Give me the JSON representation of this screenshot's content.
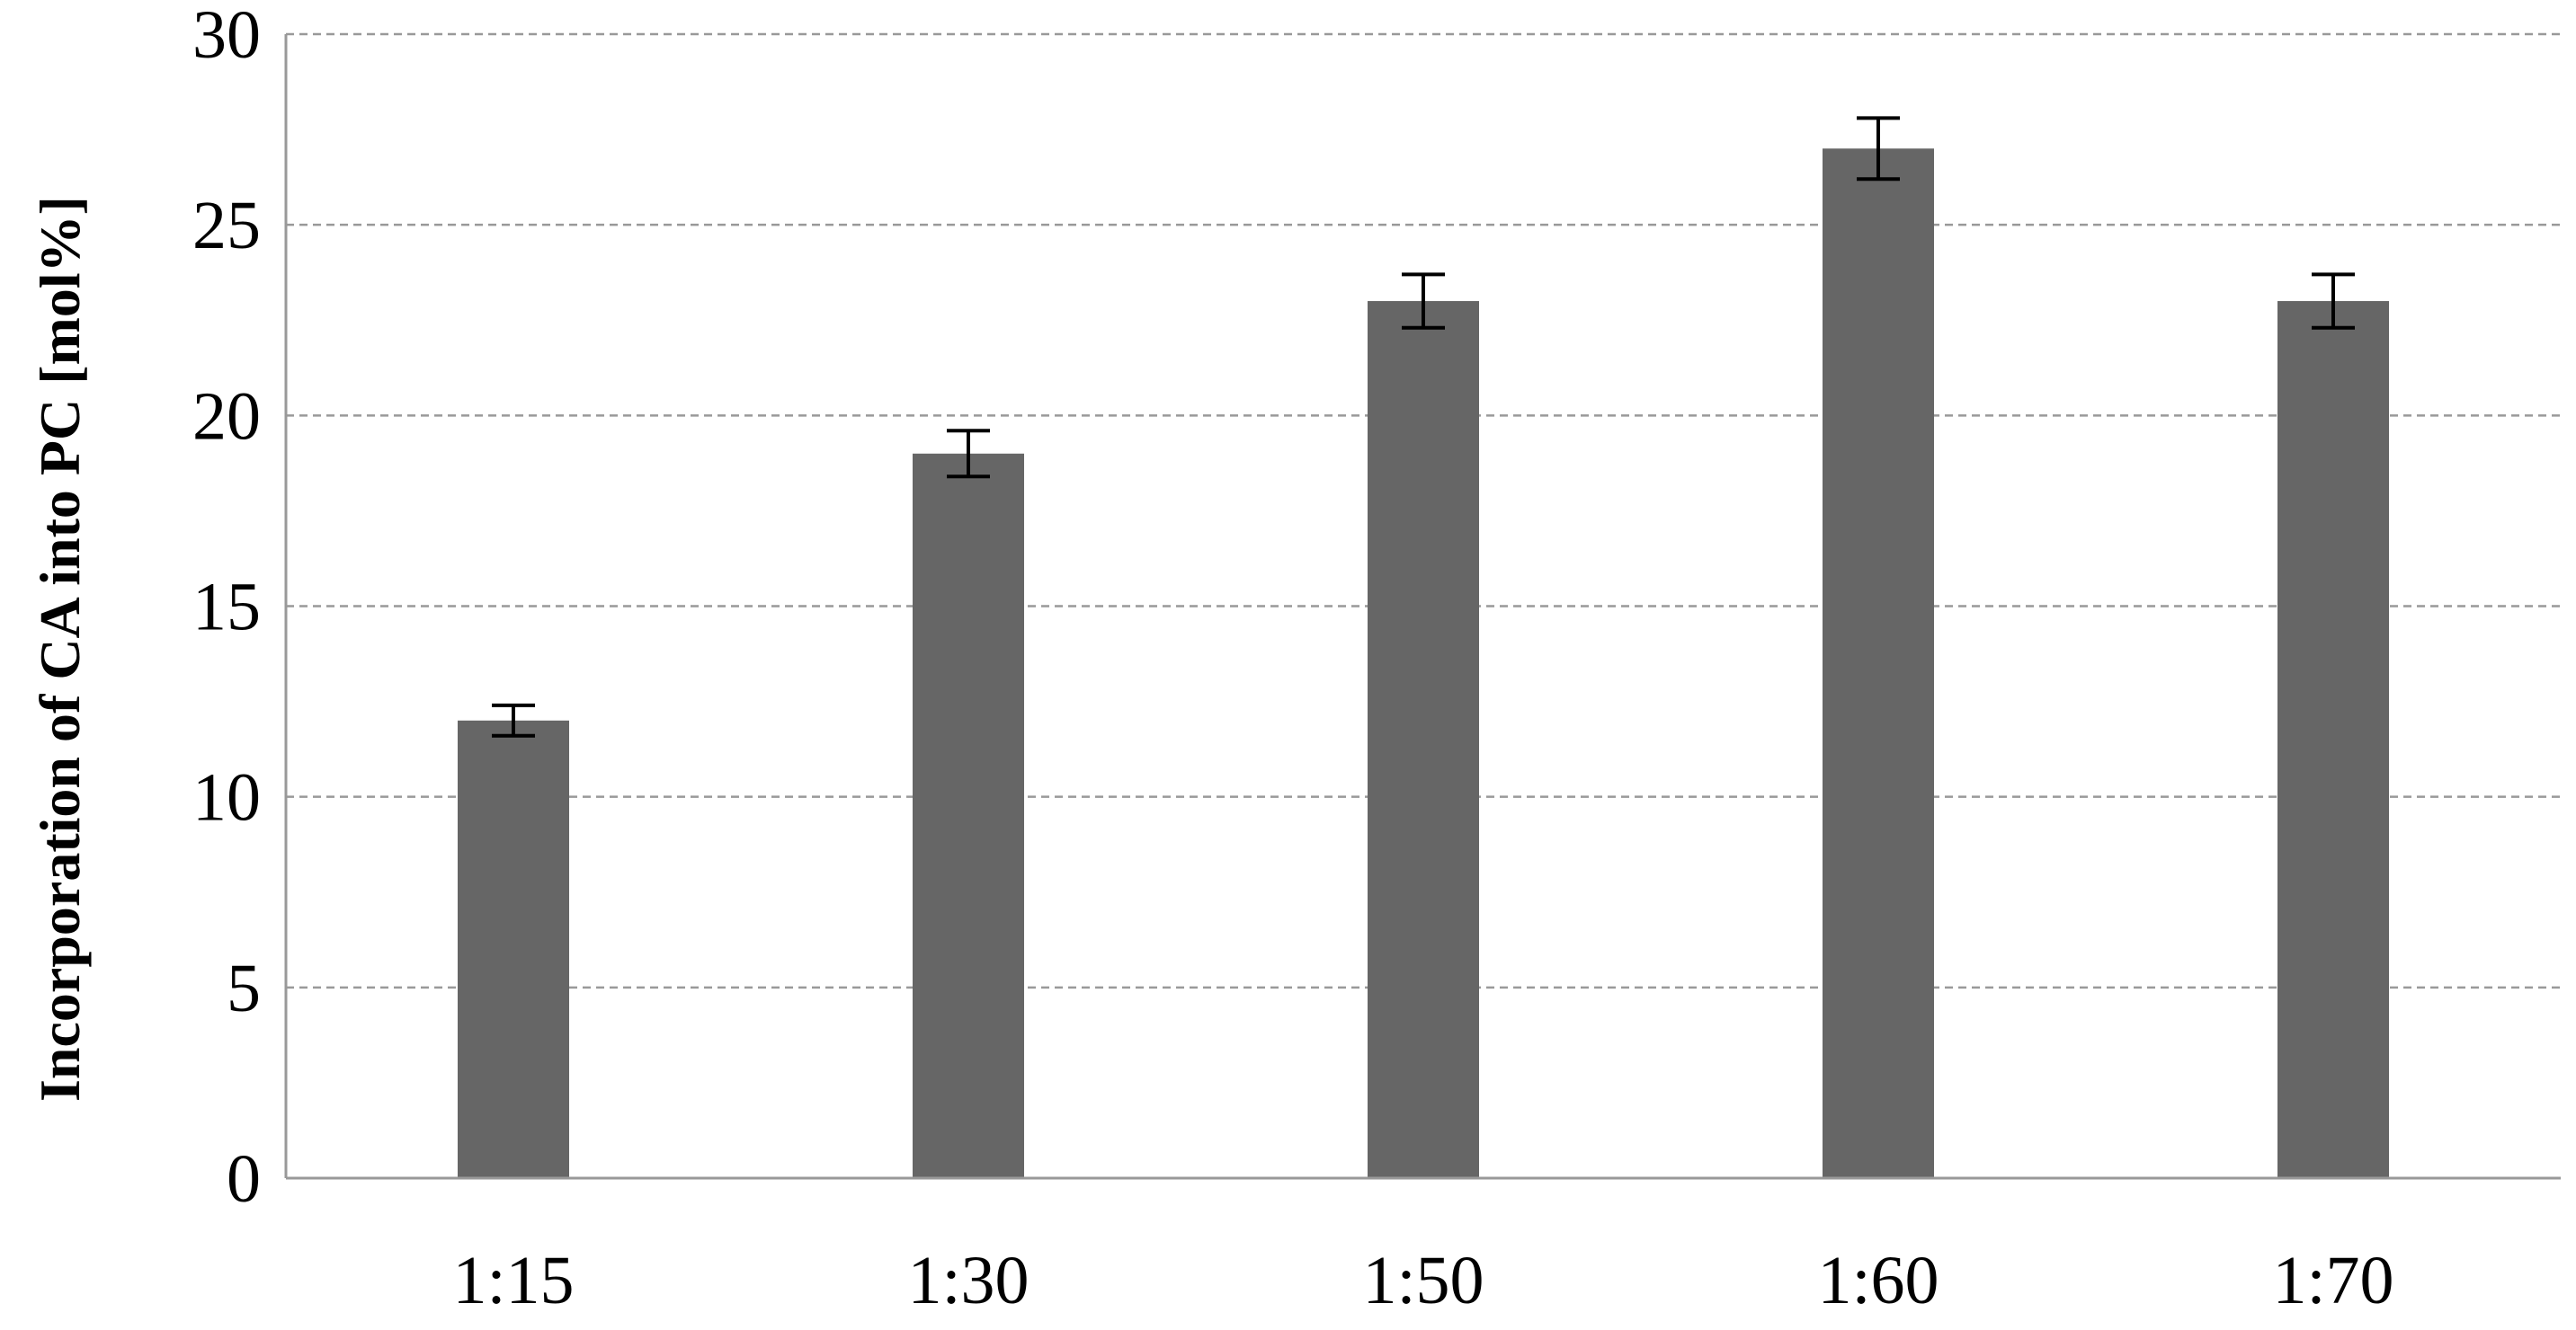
{
  "chart_data": {
    "type": "bar",
    "title": "",
    "xlabel": "",
    "ylabel": "Incorporation of  CA into PC [mol%]",
    "categories": [
      "1:15",
      "1:30",
      "1:50",
      "1:60",
      "1:70"
    ],
    "values": [
      12,
      19,
      23,
      27,
      23
    ],
    "error": [
      0.4,
      0.6,
      0.7,
      0.8,
      0.7
    ],
    "ylim": [
      0,
      30
    ],
    "yticks": [
      0,
      5,
      10,
      15,
      20,
      25,
      30
    ],
    "grid": true,
    "legend": "none",
    "colors": {
      "bar": "#666666",
      "error_bar": "#000000",
      "grid": "#999999",
      "axis": "#999999"
    }
  }
}
